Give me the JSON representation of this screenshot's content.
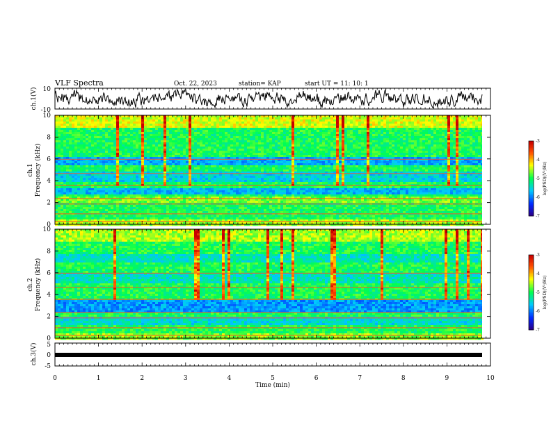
{
  "header": {
    "title": "VLF Spectra",
    "date": "Oct. 22, 2023",
    "station": "station= KAP",
    "start": "start  UT =   11: 10: 1"
  },
  "chart_data": [
    {
      "type": "line",
      "panel": "ch1-waveform",
      "ylabel": "ch.1(V)",
      "yticks": [
        "10",
        "-10"
      ],
      "ylim": [
        -10,
        10
      ],
      "xlim": [
        0,
        10
      ],
      "series": [
        {
          "values_description_skipped": true
        }
      ]
    },
    {
      "type": "heatmap",
      "panel": "ch1-spectrogram",
      "ylabel_line1": "ch.1",
      "ylabel_line2": "Frequency (kHz)",
      "yticks": [
        "0",
        "2",
        "4",
        "6",
        "8",
        "10"
      ],
      "ylim": [
        0,
        10
      ],
      "xlim": [
        0,
        9.85
      ],
      "colorbar": {
        "label": "log(PSD)(V²/Hz)",
        "ticks": [
          "-3",
          "-4",
          "-5",
          "-6",
          "-7"
        ],
        "range": [
          -7,
          -3
        ]
      }
    },
    {
      "type": "heatmap",
      "panel": "ch2-spectrogram",
      "ylabel_line1": "ch.2",
      "ylabel_line2": "Frequency (kHz)",
      "yticks": [
        "0",
        "2",
        "4",
        "6",
        "8",
        "10"
      ],
      "ylim": [
        0,
        10
      ],
      "xlim": [
        0,
        9.85
      ],
      "colorbar": {
        "label": "log(PSD)(V²/Hz)",
        "ticks": [
          "-3",
          "-4",
          "-5",
          "-6",
          "-7"
        ],
        "range": [
          -7,
          -3
        ]
      }
    },
    {
      "type": "line",
      "panel": "ch3-waveform",
      "ylabel": "ch.3(V)",
      "yticks": [
        "5",
        "0",
        "-5"
      ],
      "ylim": [
        -5,
        5
      ],
      "xlabel": "Time  (min)",
      "xticks": [
        "0",
        "1",
        "2",
        "3",
        "4",
        "5",
        "6",
        "7",
        "8",
        "9",
        "10"
      ],
      "xlim": [
        0,
        10
      ]
    }
  ]
}
